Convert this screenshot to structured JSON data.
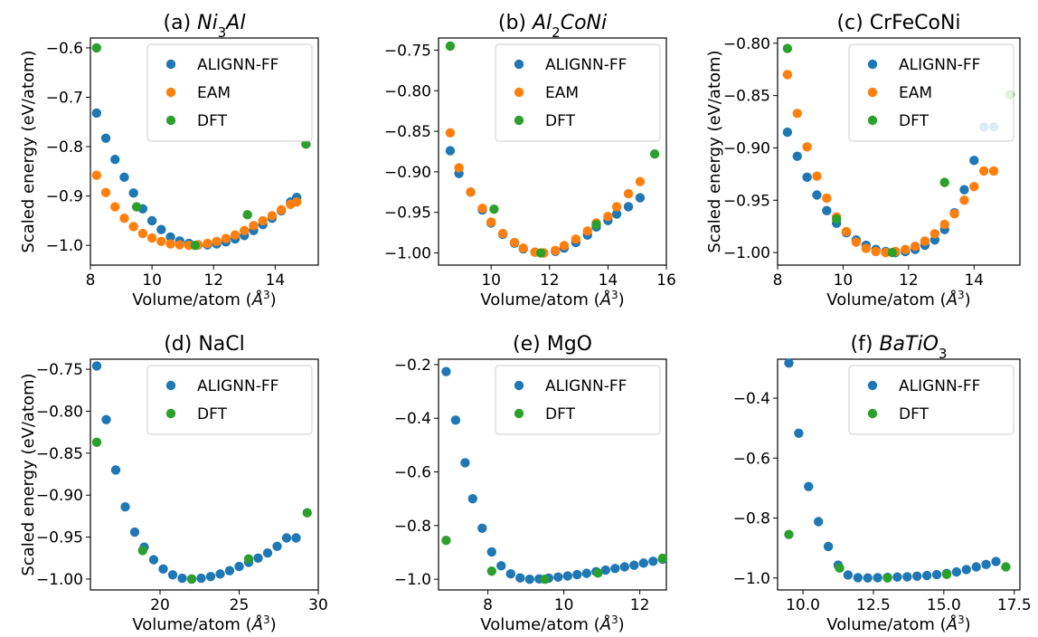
{
  "colors": {
    "ALIGNN-FF": "#1f77b4",
    "EAM": "#ff7f0e",
    "DFT": "#2ca02c"
  },
  "chart_data": [
    {
      "type": "scatter",
      "title": "(a) Ni3Al",
      "title_prefix": "(a) ",
      "title_formula": [
        [
          "Ni",
          ""
        ],
        [
          "3",
          "sub"
        ],
        [
          "Al",
          ""
        ]
      ],
      "xlabel": "Volume/atom (Å3)",
      "ylabel": "Scaled energy (eV/atom)",
      "xlim": [
        8.0,
        15.4
      ],
      "ylim": [
        -1.04,
        -0.58
      ],
      "xticks": [
        "8",
        "10",
        "12",
        "14"
      ],
      "xtick_values": [
        8,
        10,
        12,
        14
      ],
      "yticks": [
        "−0.6",
        "−0.7",
        "−0.8",
        "−0.9",
        "−1.0"
      ],
      "ytick_values": [
        -0.6,
        -0.7,
        -0.8,
        -0.9,
        -1.0
      ],
      "legend": [
        "ALIGNN-FF",
        "EAM",
        "DFT"
      ],
      "legend_position": "top-right",
      "series": [
        {
          "name": "ALIGNN-FF",
          "x": [
            8.2,
            8.5,
            8.8,
            9.1,
            9.4,
            9.7,
            10.0,
            10.3,
            10.6,
            10.9,
            11.2,
            11.5,
            11.8,
            12.1,
            12.4,
            12.7,
            13.0,
            13.3,
            13.6,
            13.9,
            14.2,
            14.5,
            14.7
          ],
          "y": [
            -0.732,
            -0.783,
            -0.826,
            -0.862,
            -0.894,
            -0.926,
            -0.95,
            -0.968,
            -0.983,
            -0.991,
            -0.996,
            -0.999,
            -0.999,
            -0.997,
            -0.993,
            -0.987,
            -0.98,
            -0.97,
            -0.958,
            -0.945,
            -0.93,
            -0.912,
            -0.903
          ]
        },
        {
          "name": "EAM",
          "x": [
            8.2,
            8.5,
            8.8,
            9.1,
            9.4,
            9.7,
            10.0,
            10.3,
            10.6,
            10.9,
            11.2,
            11.5,
            11.8,
            12.1,
            12.4,
            12.7,
            13.0,
            13.3,
            13.6,
            13.9,
            14.2,
            14.5,
            14.7
          ],
          "y": [
            -0.858,
            -0.893,
            -0.922,
            -0.945,
            -0.962,
            -0.976,
            -0.985,
            -0.992,
            -0.997,
            -0.999,
            -1.0,
            -0.999,
            -0.996,
            -0.992,
            -0.986,
            -0.979,
            -0.97,
            -0.96,
            -0.95,
            -0.94,
            -0.928,
            -0.917,
            -0.912
          ]
        },
        {
          "name": "DFT",
          "x": [
            8.2,
            9.5,
            11.4,
            13.1,
            15.0
          ],
          "y": [
            -0.6,
            -0.922,
            -1.0,
            -0.938,
            -0.795
          ]
        }
      ]
    },
    {
      "type": "scatter",
      "title": "(b) Al2CoNi",
      "title_prefix": "(b) ",
      "title_formula": [
        [
          "Al",
          ""
        ],
        [
          "2",
          "sub"
        ],
        [
          "CoNi",
          ""
        ]
      ],
      "xlabel": "Volume/atom (Å3)",
      "ylabel": "",
      "xlim": [
        8.2,
        16.0
      ],
      "ylim": [
        -1.015,
        -0.735
      ],
      "xticks": [
        "10",
        "12",
        "14",
        "16"
      ],
      "xtick_values": [
        10,
        12,
        14,
        16
      ],
      "yticks": [
        "−0.75",
        "−0.80",
        "−0.85",
        "−0.90",
        "−0.95",
        "−1.00"
      ],
      "ytick_values": [
        -0.75,
        -0.8,
        -0.85,
        -0.9,
        -0.95,
        -1.0
      ],
      "legend": [
        "ALIGNN-FF",
        "EAM",
        "DFT"
      ],
      "legend_position": "top-right",
      "series": [
        {
          "name": "ALIGNN-FF",
          "x": [
            8.6,
            8.9,
            9.3,
            9.7,
            10.0,
            10.4,
            10.8,
            11.1,
            11.5,
            11.8,
            12.2,
            12.5,
            12.9,
            13.3,
            13.6,
            14.0,
            14.3,
            14.7,
            15.1
          ],
          "y": [
            -0.874,
            -0.902,
            -0.925,
            -0.947,
            -0.963,
            -0.977,
            -0.988,
            -0.995,
            -0.999,
            -1.0,
            -0.998,
            -0.994,
            -0.987,
            -0.978,
            -0.968,
            -0.96,
            -0.952,
            -0.943,
            -0.932
          ]
        },
        {
          "name": "EAM",
          "x": [
            8.6,
            8.9,
            9.3,
            9.7,
            10.0,
            10.4,
            10.8,
            11.1,
            11.5,
            11.8,
            12.2,
            12.5,
            12.9,
            13.3,
            13.6,
            14.0,
            14.3,
            14.7,
            15.1
          ],
          "y": [
            -0.852,
            -0.895,
            -0.925,
            -0.945,
            -0.962,
            -0.976,
            -0.987,
            -0.994,
            -0.999,
            -1.0,
            -0.997,
            -0.991,
            -0.983,
            -0.973,
            -0.963,
            -0.955,
            -0.943,
            -0.927,
            -0.912
          ]
        },
        {
          "name": "DFT",
          "x": [
            8.6,
            10.1,
            11.7,
            13.6,
            15.6
          ],
          "y": [
            -0.745,
            -0.946,
            -1.0,
            -0.965,
            -0.878
          ]
        }
      ]
    },
    {
      "type": "scatter",
      "title": "(c) CrFeCoNi",
      "xlabel": "Volume/atom (Å3)",
      "ylabel": "Scaled energy (eV/atom)",
      "xlim": [
        8.0,
        15.4
      ],
      "ylim": [
        -1.012,
        -0.795
      ],
      "xticks": [
        "8",
        "10",
        "12",
        "14"
      ],
      "xtick_values": [
        8,
        10,
        12,
        14
      ],
      "yticks": [
        "−0.80",
        "−0.85",
        "−0.90",
        "−0.95",
        "−1.00"
      ],
      "ytick_values": [
        -0.8,
        -0.85,
        -0.9,
        -0.95,
        -1.0
      ],
      "legend": [
        "ALIGNN-FF",
        "EAM",
        "DFT"
      ],
      "legend_position": "top-right",
      "series": [
        {
          "name": "ALIGNN-FF",
          "x": [
            8.3,
            8.6,
            8.9,
            9.2,
            9.5,
            9.8,
            10.1,
            10.4,
            10.7,
            11.0,
            11.3,
            11.6,
            11.9,
            12.2,
            12.5,
            12.8,
            13.1,
            13.4,
            13.7,
            14.0,
            14.3,
            14.6
          ],
          "y": [
            -0.885,
            -0.908,
            -0.928,
            -0.945,
            -0.96,
            -0.972,
            -0.981,
            -0.988,
            -0.993,
            -0.997,
            -0.999,
            -1.0,
            -0.999,
            -0.997,
            -0.993,
            -0.988,
            -0.978,
            -0.962,
            -0.94,
            -0.912,
            -0.88,
            -0.88
          ]
        },
        {
          "name": "EAM",
          "x": [
            8.3,
            8.6,
            8.9,
            9.2,
            9.5,
            9.8,
            10.1,
            10.4,
            10.7,
            11.0,
            11.3,
            11.6,
            11.9,
            12.2,
            12.5,
            12.8,
            13.1,
            13.4,
            13.7,
            14.0,
            14.3,
            14.6
          ],
          "y": [
            -0.83,
            -0.867,
            -0.899,
            -0.927,
            -0.948,
            -0.966,
            -0.98,
            -0.99,
            -0.996,
            -0.999,
            -1.0,
            -0.999,
            -0.997,
            -0.994,
            -0.989,
            -0.982,
            -0.973,
            -0.963,
            -0.95,
            -0.937,
            -0.922,
            -0.922
          ]
        },
        {
          "name": "DFT",
          "x": [
            8.3,
            9.8,
            11.5,
            13.1,
            15.1
          ],
          "y": [
            -0.805,
            -0.968,
            -1.0,
            -0.933,
            -0.849
          ]
        }
      ]
    },
    {
      "type": "scatter",
      "title": "(d) NaCl",
      "xlabel": "Volume/atom (Å3)",
      "ylabel": "Scaled energy (eV/atom)",
      "xlim": [
        15.6,
        30.0
      ],
      "ylim": [
        -1.013,
        -0.738
      ],
      "xticks": [
        "20",
        "25",
        "30"
      ],
      "xtick_values": [
        20,
        25,
        30
      ],
      "yticks": [
        "−0.75",
        "−0.80",
        "−0.85",
        "−0.90",
        "−0.95",
        "−1.00"
      ],
      "ytick_values": [
        -0.75,
        -0.8,
        -0.85,
        -0.9,
        -0.95,
        -1.0
      ],
      "legend": [
        "ALIGNN-FF",
        "DFT"
      ],
      "legend_position": "top-right",
      "series": [
        {
          "name": "ALIGNN-FF",
          "x": [
            16.0,
            16.6,
            17.2,
            17.8,
            18.4,
            19.0,
            19.6,
            20.2,
            20.8,
            21.4,
            22.0,
            22.6,
            23.2,
            23.8,
            24.4,
            25.0,
            25.6,
            26.2,
            26.8,
            27.4,
            28.0,
            28.6
          ],
          "y": [
            -0.746,
            -0.81,
            -0.87,
            -0.914,
            -0.944,
            -0.962,
            -0.977,
            -0.988,
            -0.995,
            -0.999,
            -1.0,
            -0.999,
            -0.997,
            -0.994,
            -0.99,
            -0.985,
            -0.98,
            -0.975,
            -0.969,
            -0.961,
            -0.951,
            -0.951
          ]
        },
        {
          "name": "DFT",
          "x": [
            16.0,
            18.9,
            22.0,
            25.6,
            29.3
          ],
          "y": [
            -0.837,
            -0.966,
            -1.0,
            -0.976,
            -0.921
          ]
        }
      ]
    },
    {
      "type": "scatter",
      "title": "(e) MgO",
      "xlabel": "Volume/atom (Å3)",
      "ylabel": "",
      "xlim": [
        6.7,
        12.7
      ],
      "ylim": [
        -1.04,
        -0.18
      ],
      "xticks": [
        "8",
        "10",
        "12"
      ],
      "xtick_values": [
        8,
        10,
        12
      ],
      "yticks": [
        "−0.2",
        "−0.4",
        "−0.6",
        "−0.8",
        "−1.0"
      ],
      "ytick_values": [
        -0.2,
        -0.4,
        -0.6,
        -0.8,
        -1.0
      ],
      "legend": [
        "ALIGNN-FF",
        "DFT"
      ],
      "legend_position": "top-right",
      "series": [
        {
          "name": "ALIGNN-FF",
          "x": [
            6.9,
            7.15,
            7.4,
            7.6,
            7.85,
            8.1,
            8.35,
            8.6,
            8.85,
            9.1,
            9.35,
            9.6,
            9.85,
            10.1,
            10.35,
            10.6,
            10.85,
            11.1,
            11.35,
            11.6,
            11.85,
            12.1,
            12.35,
            12.6
          ],
          "y": [
            -0.226,
            -0.407,
            -0.566,
            -0.7,
            -0.81,
            -0.898,
            -0.95,
            -0.98,
            -0.995,
            -1.0,
            -0.999,
            -0.996,
            -0.992,
            -0.988,
            -0.983,
            -0.978,
            -0.972,
            -0.966,
            -0.96,
            -0.954,
            -0.948,
            -0.94,
            -0.933,
            -0.925
          ]
        },
        {
          "name": "DFT",
          "x": [
            6.9,
            8.1,
            9.5,
            10.9,
            12.6
          ],
          "y": [
            -0.855,
            -0.97,
            -1.0,
            -0.977,
            -0.922
          ]
        }
      ]
    },
    {
      "type": "scatter",
      "title": "(f) BaTiO3",
      "title_prefix": "(f) ",
      "title_formula": [
        [
          "BaTiO",
          ""
        ],
        [
          "3",
          "sub"
        ]
      ],
      "xlabel": "Volume/atom (Å3)",
      "ylabel": "",
      "xlim": [
        9.1,
        17.7
      ],
      "ylim": [
        -1.04,
        -0.27
      ],
      "xticks": [
        "10.0",
        "12.5",
        "15.0",
        "17.5"
      ],
      "xtick_values": [
        10.0,
        12.5,
        15.0,
        17.5
      ],
      "yticks": [
        "−0.4",
        "−0.6",
        "−0.8",
        "−1.0"
      ],
      "ytick_values": [
        -0.4,
        -0.6,
        -0.8,
        -1.0
      ],
      "legend": [
        "ALIGNN-FF",
        "DFT"
      ],
      "legend_position": "top-right",
      "series": [
        {
          "name": "ALIGNN-FF",
          "x": [
            9.5,
            9.85,
            10.2,
            10.55,
            10.9,
            11.25,
            11.6,
            11.95,
            12.3,
            12.65,
            13.0,
            13.35,
            13.7,
            14.05,
            14.4,
            14.75,
            15.1,
            15.45,
            15.8,
            16.15,
            16.5,
            16.85
          ],
          "y": [
            -0.283,
            -0.517,
            -0.695,
            -0.812,
            -0.895,
            -0.957,
            -0.99,
            -0.999,
            -1.0,
            -0.999,
            -0.998,
            -0.997,
            -0.996,
            -0.994,
            -0.992,
            -0.989,
            -0.985,
            -0.98,
            -0.972,
            -0.963,
            -0.955,
            -0.945
          ]
        },
        {
          "name": "DFT",
          "x": [
            9.5,
            11.3,
            13.0,
            15.1,
            17.2
          ],
          "y": [
            -0.855,
            -0.967,
            -1.0,
            -0.988,
            -0.963
          ]
        }
      ]
    }
  ]
}
